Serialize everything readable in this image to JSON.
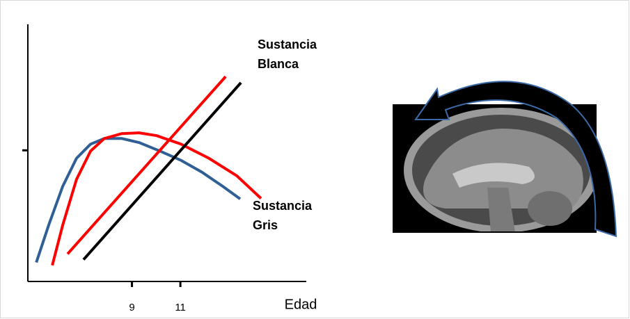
{
  "chart_data": {
    "type": "line",
    "xlabel": "Edad",
    "xlim": [
      4.7,
      16.2
    ],
    "xticks": [
      9,
      11
    ],
    "ylim": [
      0,
      100
    ],
    "yticks": [
      {
        "value": 51,
        "label": null
      }
    ],
    "series": [
      {
        "color": "#2f5f94",
        "x": [
          5.05,
          5.56,
          6.14,
          6.71,
          7.29,
          7.86,
          8.58,
          9.3,
          10.16,
          11.03,
          11.89,
          12.75,
          13.47
        ],
        "values": [
          7.4,
          21.9,
          37.0,
          47.9,
          53.4,
          55.6,
          55.6,
          54.0,
          50.7,
          47.1,
          42.5,
          37.0,
          32.1
        ]
      },
      {
        "color": "#ff0000",
        "x": [
          5.71,
          6.14,
          6.71,
          7.29,
          7.86,
          8.58,
          9.3,
          10.02,
          11.03,
          12.18,
          13.33,
          14.33
        ],
        "values": [
          6.3,
          21.9,
          39.7,
          50.7,
          55.6,
          57.5,
          57.8,
          56.7,
          53.4,
          47.9,
          41.1,
          32.3
        ]
      },
      {
        "color": "#ff0000",
        "x": [
          6.34,
          12.87
        ],
        "values": [
          10.7,
          79.7
        ]
      },
      {
        "color": "#000000",
        "x": [
          7.0,
          13.5
        ],
        "values": [
          8.5,
          77.3
        ]
      }
    ],
    "annotations": [
      [
        "Sustancia",
        "Blanca"
      ],
      [
        "Sustancia",
        "Gris"
      ]
    ]
  }
}
